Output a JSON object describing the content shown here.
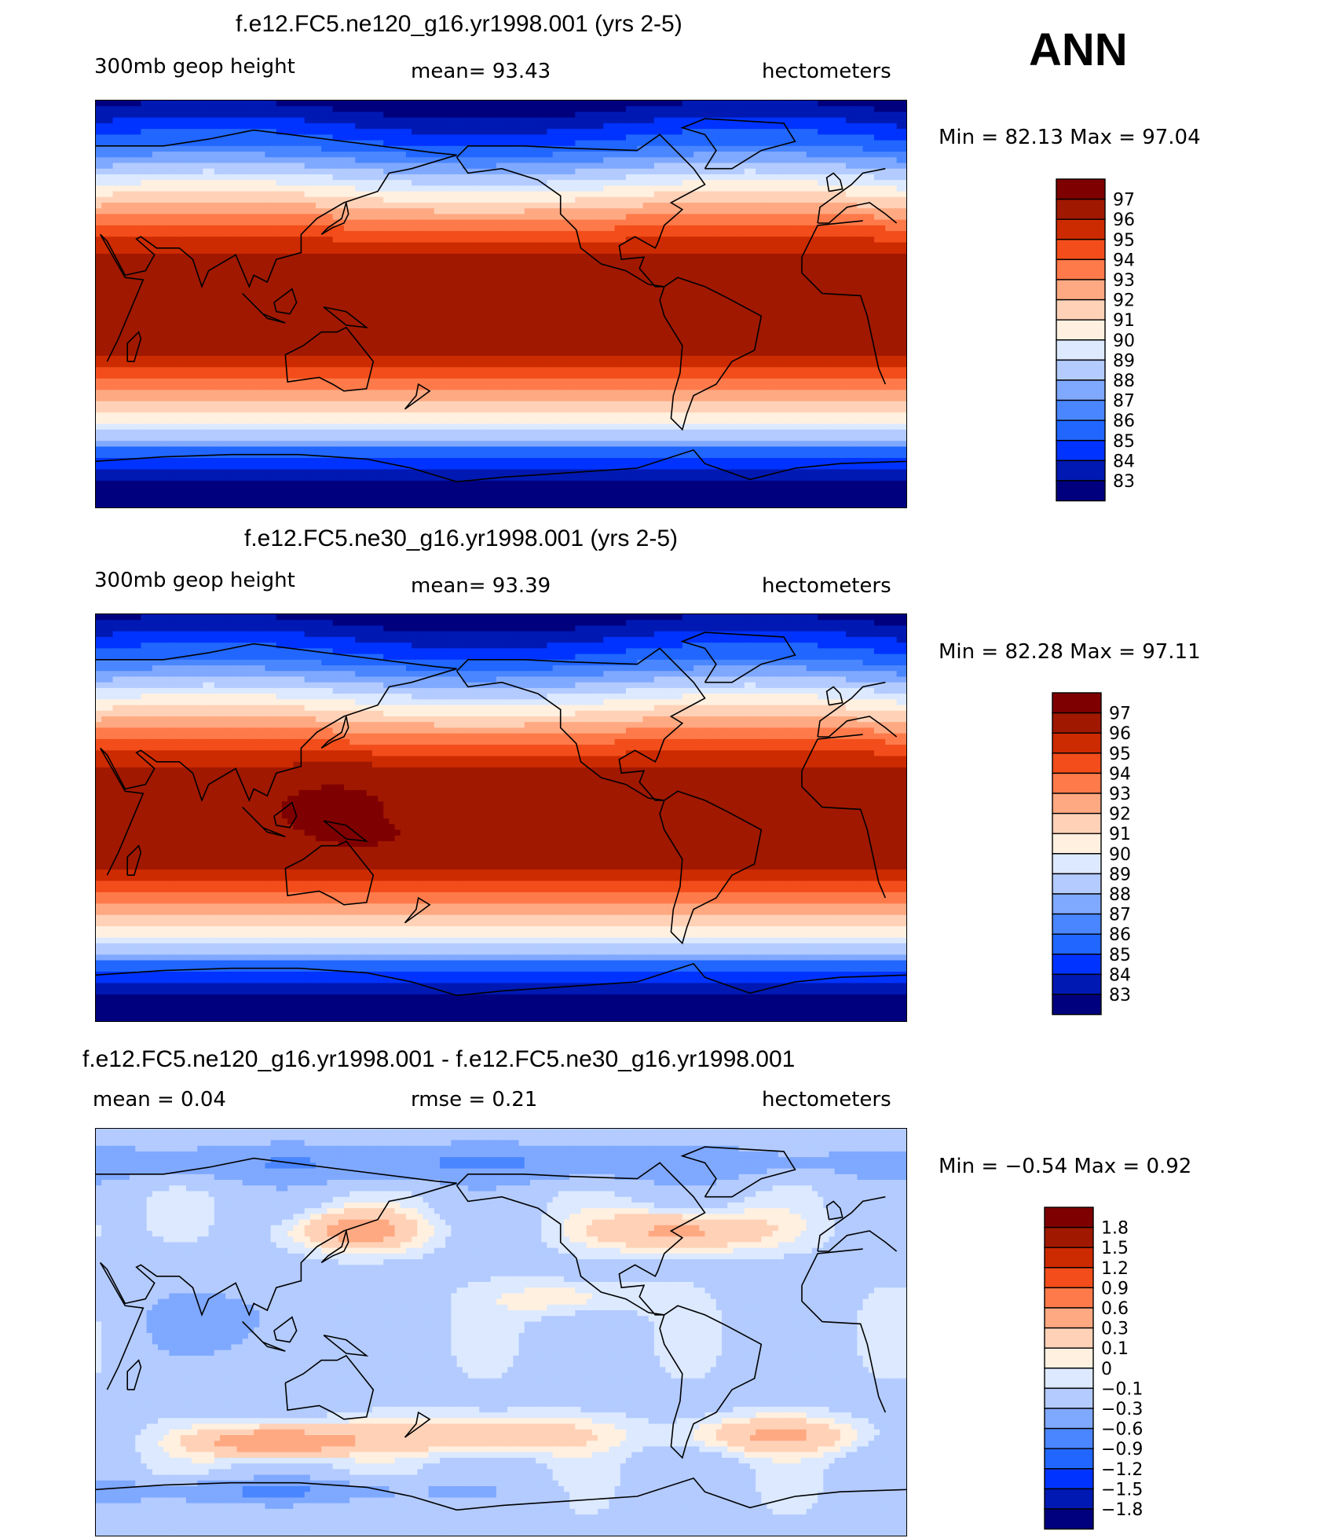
{
  "season": "ANN",
  "colors": {
    "levels15": [
      "#00007f",
      "#0019b3",
      "#0033ff",
      "#2066ff",
      "#4a86ff",
      "#7fa8ff",
      "#b3cbff",
      "#dce9ff",
      "#fff0e0",
      "#ffd2b8",
      "#ffa982",
      "#ff7a4a",
      "#f24d1a",
      "#cc2a00",
      "#a01800",
      "#7f0000"
    ],
    "diff": [
      "#00007f",
      "#0019b3",
      "#0033ff",
      "#2066ff",
      "#4a86ff",
      "#7fa8ff",
      "#b3cbff",
      "#dce9ff",
      "#fff0e0",
      "#ffd2b8",
      "#ffa982",
      "#ff7a4a",
      "#f24d1a",
      "#cc2a00",
      "#a01800",
      "#7f0000"
    ]
  },
  "panels": [
    {
      "title": "f.e12.FC5.ne120_g16.yr1998.001 (yrs 2-5)",
      "left_label": "300mb geop height",
      "center_label": "mean=   93.43",
      "right_label": "hectometers",
      "minmax": "Min =   82.13 Max =   97.04",
      "field": "abs1"
    },
    {
      "title": "f.e12.FC5.ne30_g16.yr1998.001 (yrs 2-5)",
      "left_label": "300mb geop height",
      "center_label": "mean=   93.39",
      "right_label": "hectometers",
      "minmax": "Min =   82.28 Max =   97.11",
      "field": "abs2"
    },
    {
      "title": "f.e12.FC5.ne120_g16.yr1998.001 - f.e12.FC5.ne30_g16.yr1998.001",
      "left_label": "mean =     0.04",
      "center_label": "rmse =     0.21",
      "right_label": "hectometers",
      "minmax": "Min =   −0.54 Max =     0.92",
      "field": "diff"
    }
  ],
  "colorbars": [
    {
      "labels": [
        "97",
        "96",
        "95",
        "94",
        "93",
        "92",
        "91",
        "90",
        "89",
        "88",
        "87",
        "86",
        "85",
        "84",
        "83"
      ]
    },
    {
      "labels": [
        "97",
        "96",
        "95",
        "94",
        "93",
        "92",
        "91",
        "90",
        "89",
        "88",
        "87",
        "86",
        "85",
        "84",
        "83"
      ]
    },
    {
      "labels": [
        "1.8",
        "1.5",
        "1.2",
        "0.9",
        "0.6",
        "0.3",
        "0.1",
        "0",
        "−0.1",
        "−0.3",
        "−0.6",
        "−0.9",
        "−1.2",
        "−1.5",
        "−1.8"
      ]
    }
  ]
}
